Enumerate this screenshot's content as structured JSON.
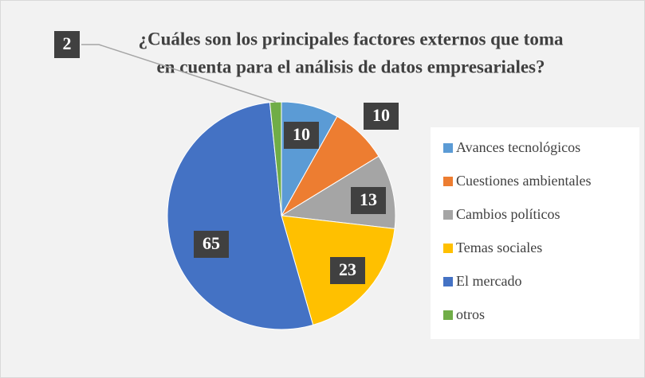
{
  "chart_data": {
    "type": "pie",
    "title": [
      "¿Cuáles son los principales factores externos que toma",
      "en cuenta para el análisis de datos empresariales?"
    ],
    "categories": [
      "Avances tecnológicos",
      "Cuestiones ambientales",
      "Cambios políticos",
      "Temas sociales",
      "El mercado",
      "otros"
    ],
    "values": [
      10,
      10,
      13,
      23,
      65,
      2
    ],
    "colors": [
      "#5b9bd5",
      "#ed7d31",
      "#a5a5a5",
      "#ffc000",
      "#4472c4",
      "#70ad47"
    ],
    "legend": "right"
  }
}
